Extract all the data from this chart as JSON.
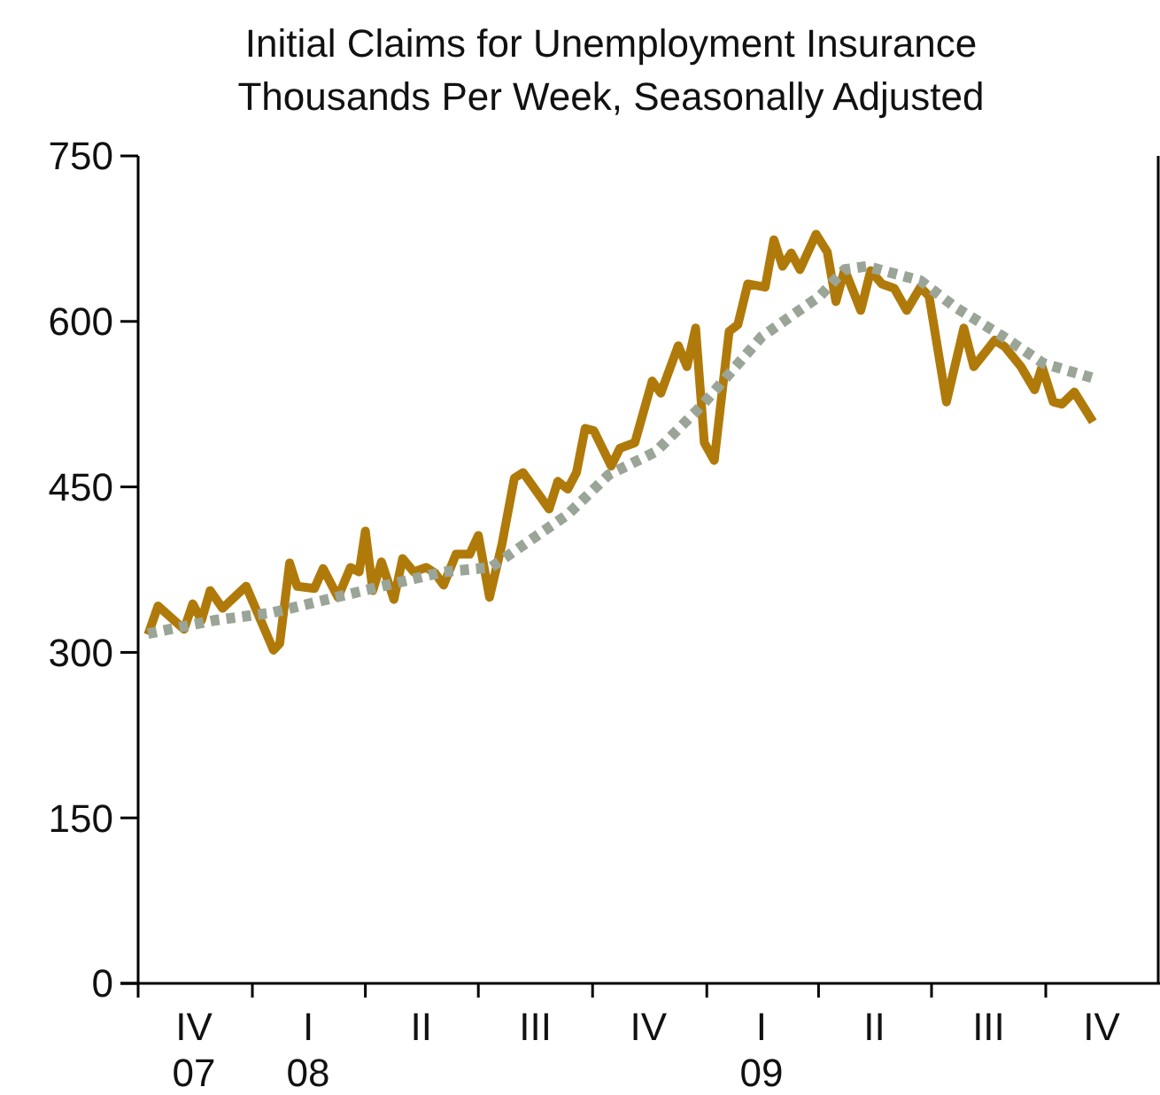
{
  "chart_data": {
    "type": "line",
    "title": "Initial Claims for Unemployment Insurance",
    "subtitle": "Thousands Per Week, Seasonally Adjusted",
    "xlim": [
      "2007-10-01",
      "2010-01-01"
    ],
    "xticks": [
      {
        "value": "2007-10-01",
        "label": null
      },
      {
        "value": "2007-11-15",
        "label": "IV\n07"
      },
      {
        "value": "2008-01-01",
        "label": null
      },
      {
        "value": "2008-02-15",
        "label": "I\n08"
      },
      {
        "value": "2008-04-01",
        "label": null
      },
      {
        "value": "2008-05-16",
        "label": "II"
      },
      {
        "value": "2008-07-01",
        "label": null
      },
      {
        "value": "2008-08-16",
        "label": "III"
      },
      {
        "value": "2008-10-01",
        "label": null
      },
      {
        "value": "2008-11-15",
        "label": "IV"
      },
      {
        "value": "2009-01-01",
        "label": null
      },
      {
        "value": "2009-02-14",
        "label": "I\n09"
      },
      {
        "value": "2009-04-01",
        "label": null
      },
      {
        "value": "2009-05-16",
        "label": "II"
      },
      {
        "value": "2009-07-01",
        "label": null
      },
      {
        "value": "2009-08-16",
        "label": "III"
      },
      {
        "value": "2009-10-01",
        "label": null
      },
      {
        "value": "2009-11-15",
        "label": "IV"
      }
    ],
    "ylim": [
      0,
      750
    ],
    "yticks": [
      0,
      150,
      300,
      450,
      600,
      750
    ],
    "grid": false,
    "marker": "none",
    "series": [
      {
        "color": "#b07a0a",
        "line_style": "solid",
        "x": [
          "2007-10-09",
          "2007-10-17",
          "2007-11-07",
          "2007-11-14",
          "2007-11-21",
          "2007-11-28",
          "2007-12-08",
          "2007-12-27",
          "2008-01-18",
          "2008-01-23",
          "2008-01-31",
          "2008-02-06",
          "2008-02-20",
          "2008-02-27",
          "2008-03-10",
          "2008-03-20",
          "2008-03-27",
          "2008-04-01",
          "2008-04-07",
          "2008-04-14",
          "2008-04-24",
          "2008-05-01",
          "2008-05-10",
          "2008-05-20",
          "2008-05-27",
          "2008-06-03",
          "2008-06-13",
          "2008-06-24",
          "2008-07-01",
          "2008-07-10",
          "2008-07-20",
          "2008-07-30",
          "2008-08-06",
          "2008-08-27",
          "2008-09-03",
          "2008-09-11",
          "2008-09-18",
          "2008-09-25",
          "2008-10-02",
          "2008-10-16",
          "2008-10-23",
          "2008-11-04",
          "2008-11-18",
          "2008-11-25",
          "2008-12-09",
          "2008-12-16",
          "2008-12-23",
          "2008-12-30",
          "2009-01-07",
          "2009-01-19",
          "2009-01-26",
          "2009-02-03",
          "2009-02-17",
          "2009-02-24",
          "2009-03-03",
          "2009-03-10",
          "2009-03-17",
          "2009-03-30",
          "2009-04-08",
          "2009-04-15",
          "2009-04-22",
          "2009-05-05",
          "2009-05-13",
          "2009-05-22",
          "2009-06-01",
          "2009-06-11",
          "2009-06-22",
          "2009-06-29",
          "2009-07-13",
          "2009-07-27",
          "2009-08-04",
          "2009-08-14",
          "2009-08-21",
          "2009-08-29",
          "2009-09-11",
          "2009-09-22",
          "2009-09-28",
          "2009-10-07",
          "2009-10-14",
          "2009-10-24",
          "2009-11-08"
        ],
        "values": [
          316,
          342,
          321,
          344,
          329,
          356,
          340,
          360,
          302,
          308,
          381,
          360,
          358,
          376,
          350,
          377,
          373,
          410,
          356,
          382,
          348,
          385,
          373,
          377,
          372,
          361,
          389,
          389,
          406,
          350,
          398,
          458,
          463,
          430,
          455,
          448,
          463,
          503,
          501,
          469,
          485,
          490,
          546,
          535,
          578,
          559,
          594,
          490,
          474,
          591,
          597,
          634,
          631,
          674,
          650,
          662,
          647,
          679,
          663,
          618,
          647,
          610,
          646,
          634,
          630,
          610,
          631,
          623,
          527,
          594,
          559,
          573,
          583,
          577,
          559,
          538,
          559,
          527,
          525,
          536,
          509
        ]
      },
      {
        "color": "#9aa598",
        "line_style": "dotted",
        "x": [
          "2007-10-09",
          "2007-12-01",
          "2008-01-17",
          "2008-04-07",
          "2008-06-03",
          "2008-07-11",
          "2008-09-11",
          "2008-10-14",
          "2008-11-21",
          "2008-12-29",
          "2009-02-14",
          "2009-04-02",
          "2009-04-22",
          "2009-05-10",
          "2009-06-22",
          "2009-07-20",
          "2009-08-28",
          "2009-09-29",
          "2009-11-07"
        ],
        "values": [
          317,
          329,
          336,
          358,
          373,
          377,
          425,
          461,
          482,
          525,
          586,
          623,
          647,
          650,
          637,
          613,
          586,
          562,
          549
        ]
      }
    ]
  }
}
